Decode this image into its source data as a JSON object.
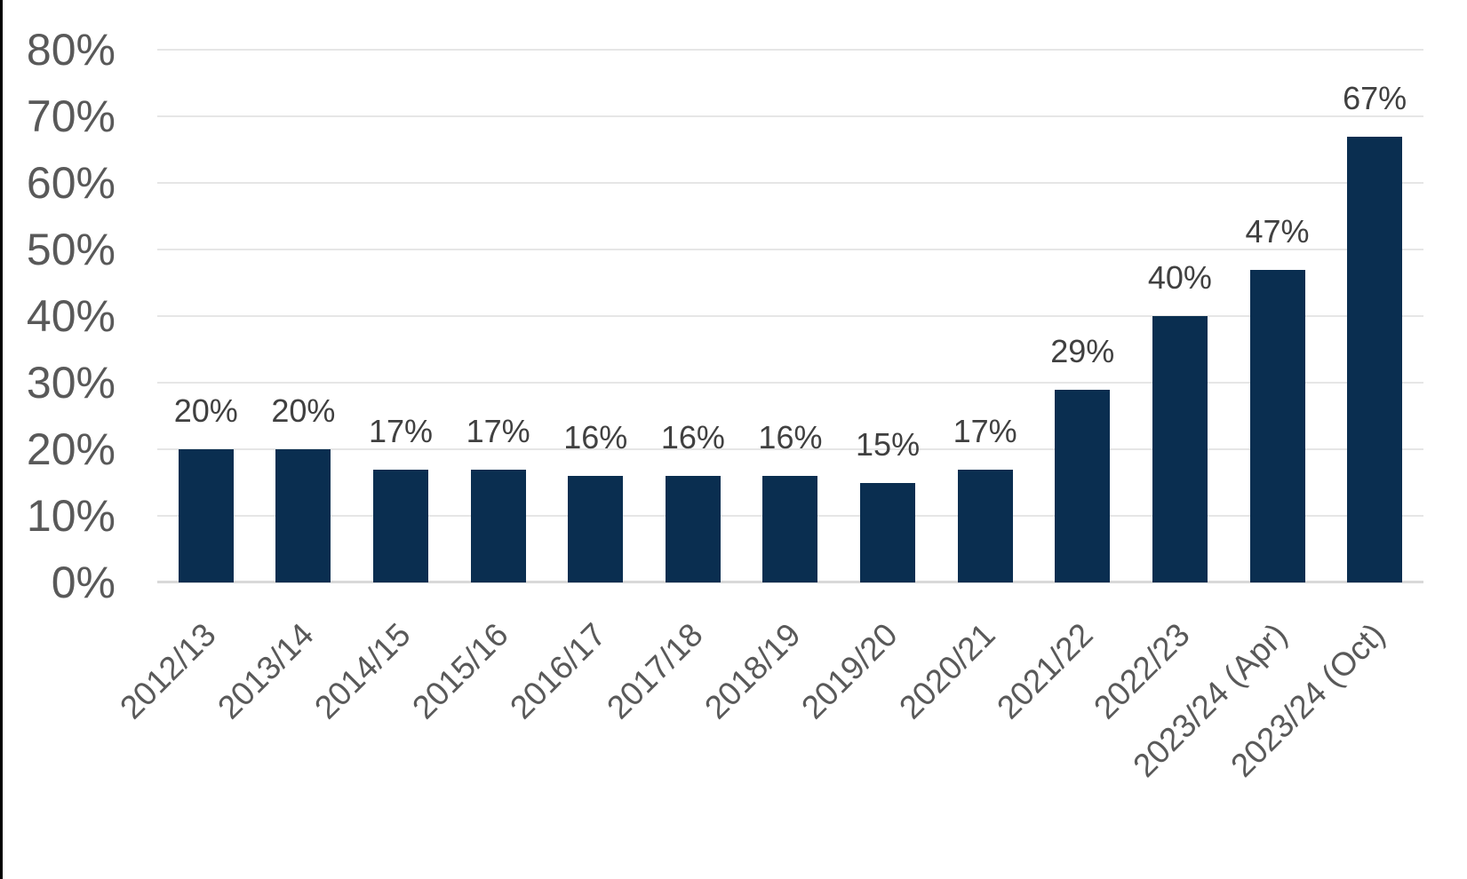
{
  "page": {
    "background": "#ffffff",
    "left_edge_color": "#000000"
  },
  "chart_data": {
    "type": "bar",
    "title": "",
    "xlabel": "",
    "ylabel": "",
    "categories": [
      "2012/13",
      "2013/14",
      "2014/15",
      "2015/16",
      "2016/17",
      "2017/18",
      "2018/19",
      "2019/20",
      "2020/21",
      "2021/22",
      "2022/23",
      "2023/24 (Apr)",
      "2023/24 (Oct)"
    ],
    "values": [
      20,
      20,
      17,
      17,
      16,
      16,
      16,
      15,
      17,
      29,
      40,
      47,
      67
    ],
    "value_labels": [
      "20%",
      "20%",
      "17%",
      "17%",
      "16%",
      "16%",
      "16%",
      "15%",
      "17%",
      "29%",
      "40%",
      "47%",
      "67%"
    ],
    "y_ticks": [
      {
        "value": 0,
        "label": "0%"
      },
      {
        "value": 10,
        "label": "10%"
      },
      {
        "value": 20,
        "label": "20%"
      },
      {
        "value": 30,
        "label": "30%"
      },
      {
        "value": 40,
        "label": "40%"
      },
      {
        "value": 50,
        "label": "50%"
      },
      {
        "value": 60,
        "label": "60%"
      },
      {
        "value": 70,
        "label": "70%"
      },
      {
        "value": 80,
        "label": "80%"
      }
    ],
    "ylim": [
      0,
      80
    ],
    "grid": true,
    "legend": "none",
    "x_label_rotation_deg": -45,
    "colors": {
      "bar": "#0a2e50",
      "gridline": "#e6e6e6",
      "axis_line": "#d9d9d9",
      "y_tick_label": "#595959",
      "x_tick_label": "#595959",
      "data_label": "#404040"
    }
  }
}
